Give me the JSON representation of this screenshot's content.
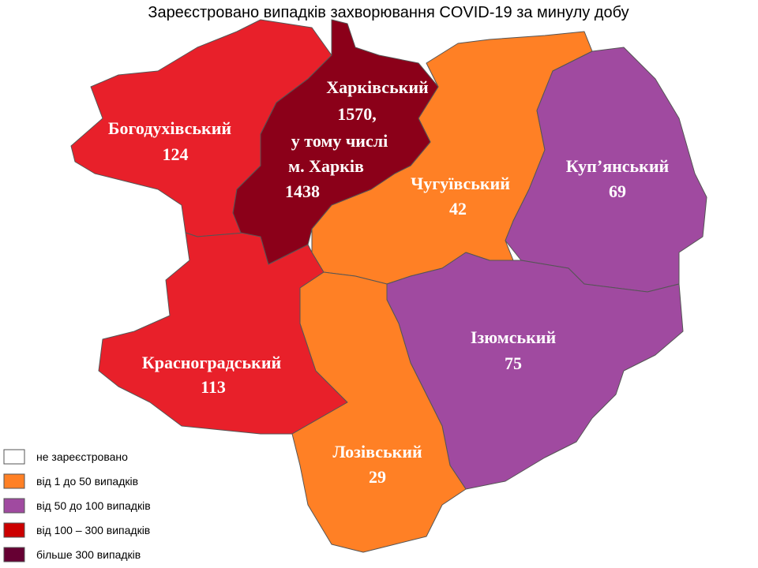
{
  "title": "Зареєстровано випадків захворювання COVID-19 за минулу добу",
  "regions": [
    {
      "name": "Богодухівський",
      "value": "124",
      "color": "#e8202a"
    },
    {
      "name": "Харківський",
      "value": "1570,",
      "note": "у тому числі",
      "city": "м. Харків",
      "city_value": "1438",
      "color": "#8b0019"
    },
    {
      "name": "Чугуївський",
      "value": "42",
      "color": "#ff8025"
    },
    {
      "name": "Куп’янський",
      "value": "69",
      "color": "#a04aa0"
    },
    {
      "name": "Ізюмський",
      "value": "75",
      "color": "#a04aa0"
    },
    {
      "name": "Красноградський",
      "value": "113",
      "color": "#e8202a"
    },
    {
      "name": "Лозівський",
      "value": "29",
      "color": "#ff8025"
    }
  ],
  "legend": [
    {
      "label": "не зареєстровано",
      "color": "#ffffff"
    },
    {
      "label": "від 1 до 50  випадків",
      "color": "#ff8025"
    },
    {
      "label": "від 50 до 100  випадків",
      "color": "#a04aa0"
    },
    {
      "label": "від 100 – 300  випадків",
      "color": "#cc0000"
    },
    {
      "label": "більше 300  випадків",
      "color": "#660033"
    }
  ]
}
